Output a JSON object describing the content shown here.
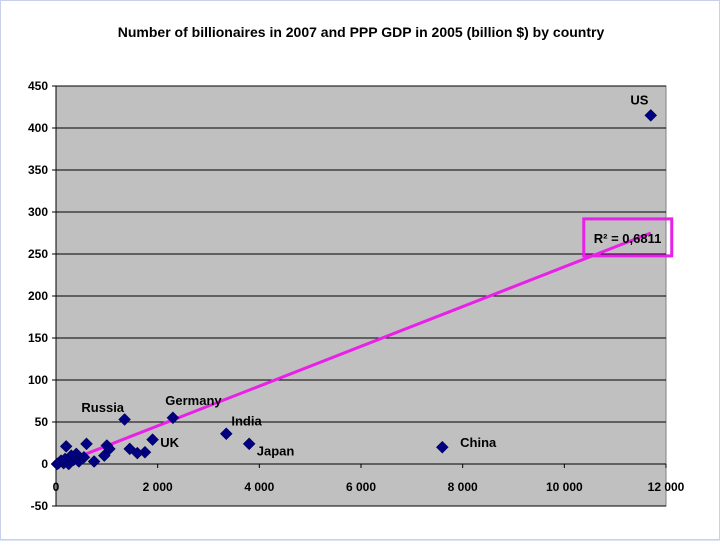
{
  "chart_data": {
    "type": "scatter",
    "title": "Number of billionaires in 2007 and PPP GDP in 2005 (billion $) by country",
    "xlabel": "",
    "ylabel": "",
    "xlim": [
      0,
      12000
    ],
    "ylim": [
      -50,
      450
    ],
    "x_ticks": [
      0,
      2000,
      4000,
      6000,
      8000,
      10000,
      12000
    ],
    "x_tick_labels": [
      "0",
      "2 000",
      "4 000",
      "6 000",
      "8 000",
      "10 000",
      "12 000"
    ],
    "y_ticks": [
      -50,
      0,
      50,
      100,
      150,
      200,
      250,
      300,
      350,
      400,
      450
    ],
    "y_tick_labels": [
      "-50",
      "0",
      "50",
      "100",
      "150",
      "200",
      "250",
      "300",
      "350",
      "400",
      "450"
    ],
    "grid": "horizontal",
    "legend": "none",
    "colors": {
      "plot_background": "#c0c0c0",
      "marker": "#000080",
      "trendline": "#e820e8",
      "r2_box": "#e820e8",
      "gridline": "#000000"
    },
    "series": [
      {
        "marker": "diamond",
        "points": [
          {
            "x": 11700,
            "y": 415
          },
          {
            "x": 7600,
            "y": 20
          },
          {
            "x": 3800,
            "y": 24
          },
          {
            "x": 3350,
            "y": 36
          },
          {
            "x": 2300,
            "y": 55
          },
          {
            "x": 1350,
            "y": 53
          },
          {
            "x": 1900,
            "y": 29
          },
          {
            "x": 1750,
            "y": 14
          },
          {
            "x": 1600,
            "y": 13
          },
          {
            "x": 1450,
            "y": 18
          },
          {
            "x": 1000,
            "y": 22
          },
          {
            "x": 1050,
            "y": 18
          },
          {
            "x": 950,
            "y": 10
          },
          {
            "x": 750,
            "y": 3
          },
          {
            "x": 600,
            "y": 24
          },
          {
            "x": 550,
            "y": 8
          },
          {
            "x": 450,
            "y": 3
          },
          {
            "x": 400,
            "y": 12
          },
          {
            "x": 350,
            "y": 5
          },
          {
            "x": 300,
            "y": 10
          },
          {
            "x": 250,
            "y": 0
          },
          {
            "x": 200,
            "y": 21
          },
          {
            "x": 180,
            "y": 6
          },
          {
            "x": 150,
            "y": 1
          },
          {
            "x": 100,
            "y": 4
          },
          {
            "x": 50,
            "y": 1
          },
          {
            "x": 20,
            "y": 0
          }
        ]
      }
    ],
    "trendline": {
      "type": "linear",
      "x_start": 0,
      "x_end": 11700,
      "y_start": -2,
      "y_end": 275
    },
    "annotations": [
      {
        "text": "US",
        "x": 11300,
        "y": 428
      },
      {
        "text": "China",
        "x": 7950,
        "y": 20
      },
      {
        "text": "Japan",
        "x": 3950,
        "y": 10
      },
      {
        "text": "India",
        "x": 3450,
        "y": 46
      },
      {
        "text": "Germany",
        "x": 2150,
        "y": 70
      },
      {
        "text": "Russia",
        "x": 500,
        "y": 62
      },
      {
        "text": "UK",
        "x": 2050,
        "y": 20
      }
    ],
    "r2_label": {
      "text": "R² = 0,6811",
      "x": 10500,
      "y": 268
    }
  }
}
